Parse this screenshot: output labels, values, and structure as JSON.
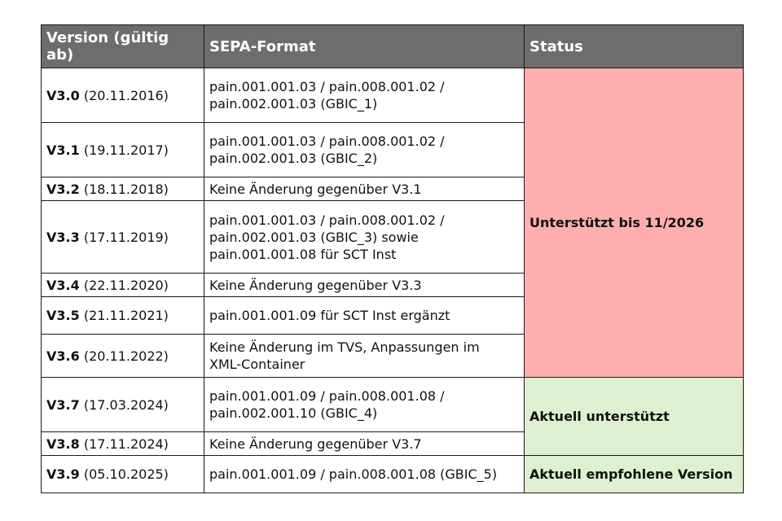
{
  "header": {
    "version": "Version (gültig ab)",
    "format": "SEPA-Format",
    "status": "Status"
  },
  "rows": [
    {
      "version": "V3.0",
      "date": "(20.11.2016)",
      "format_lines": [
        "pain.001.001.03 / pain.008.001.02 /",
        "pain.002.001.03 (GBIC_1)"
      ]
    },
    {
      "version": "V3.1",
      "date": "(19.11.2017)",
      "format_lines": [
        "pain.001.001.03 / pain.008.001.02 /",
        "pain.002.001.03 (GBIC_2)"
      ]
    },
    {
      "version": "V3.2",
      "date": "(18.11.2018)",
      "format_lines": [
        "Keine Änderung gegenüber V3.1"
      ]
    },
    {
      "version": "V3.3",
      "date": "(17.11.2019)",
      "format_lines": [
        "pain.001.001.03 / pain.008.001.02 /",
        "pain.002.001.03 (GBIC_3) sowie",
        "pain.001.001.08 für SCT Inst"
      ]
    },
    {
      "version": "V3.4",
      "date": "(22.11.2020)",
      "format_lines": [
        "Keine Änderung gegenüber V3.3"
      ]
    },
    {
      "version": "V3.5",
      "date": "(21.11.2021)",
      "format_lines": [
        "pain.001.001.09 für SCT Inst ergänzt"
      ]
    },
    {
      "version": "V3.6",
      "date": "(20.11.2022)",
      "format_lines": [
        "Keine Änderung im TVS, Anpassungen im",
        "XML-Container"
      ]
    },
    {
      "version": "V3.7",
      "date": "(17.03.2024)",
      "format_lines": [
        "pain.001.001.09 / pain.008.001.08 /",
        "pain.002.001.10 (GBIC_4)"
      ]
    },
    {
      "version": "V3.8",
      "date": "(17.11.2024)",
      "format_lines": [
        "Keine Änderung gegenüber V3.7"
      ]
    },
    {
      "version": "V3.9",
      "date": "(05.10.2025)",
      "format_lines": [
        "pain.001.001.09 / pain.008.001.08 (GBIC_5)"
      ]
    }
  ],
  "status_groups": [
    {
      "label": "Unterstützt bis 11/2026",
      "color": "#ffaeae"
    },
    {
      "label": "Aktuell unterstützt",
      "color": "#dff0d0"
    },
    {
      "label": "Aktuell empfohlene Version",
      "color": "#dff0d0"
    }
  ],
  "colors": {
    "header_bg": "#6d6d6d",
    "header_text": "#ffffff",
    "border": "#1a1a1a"
  }
}
